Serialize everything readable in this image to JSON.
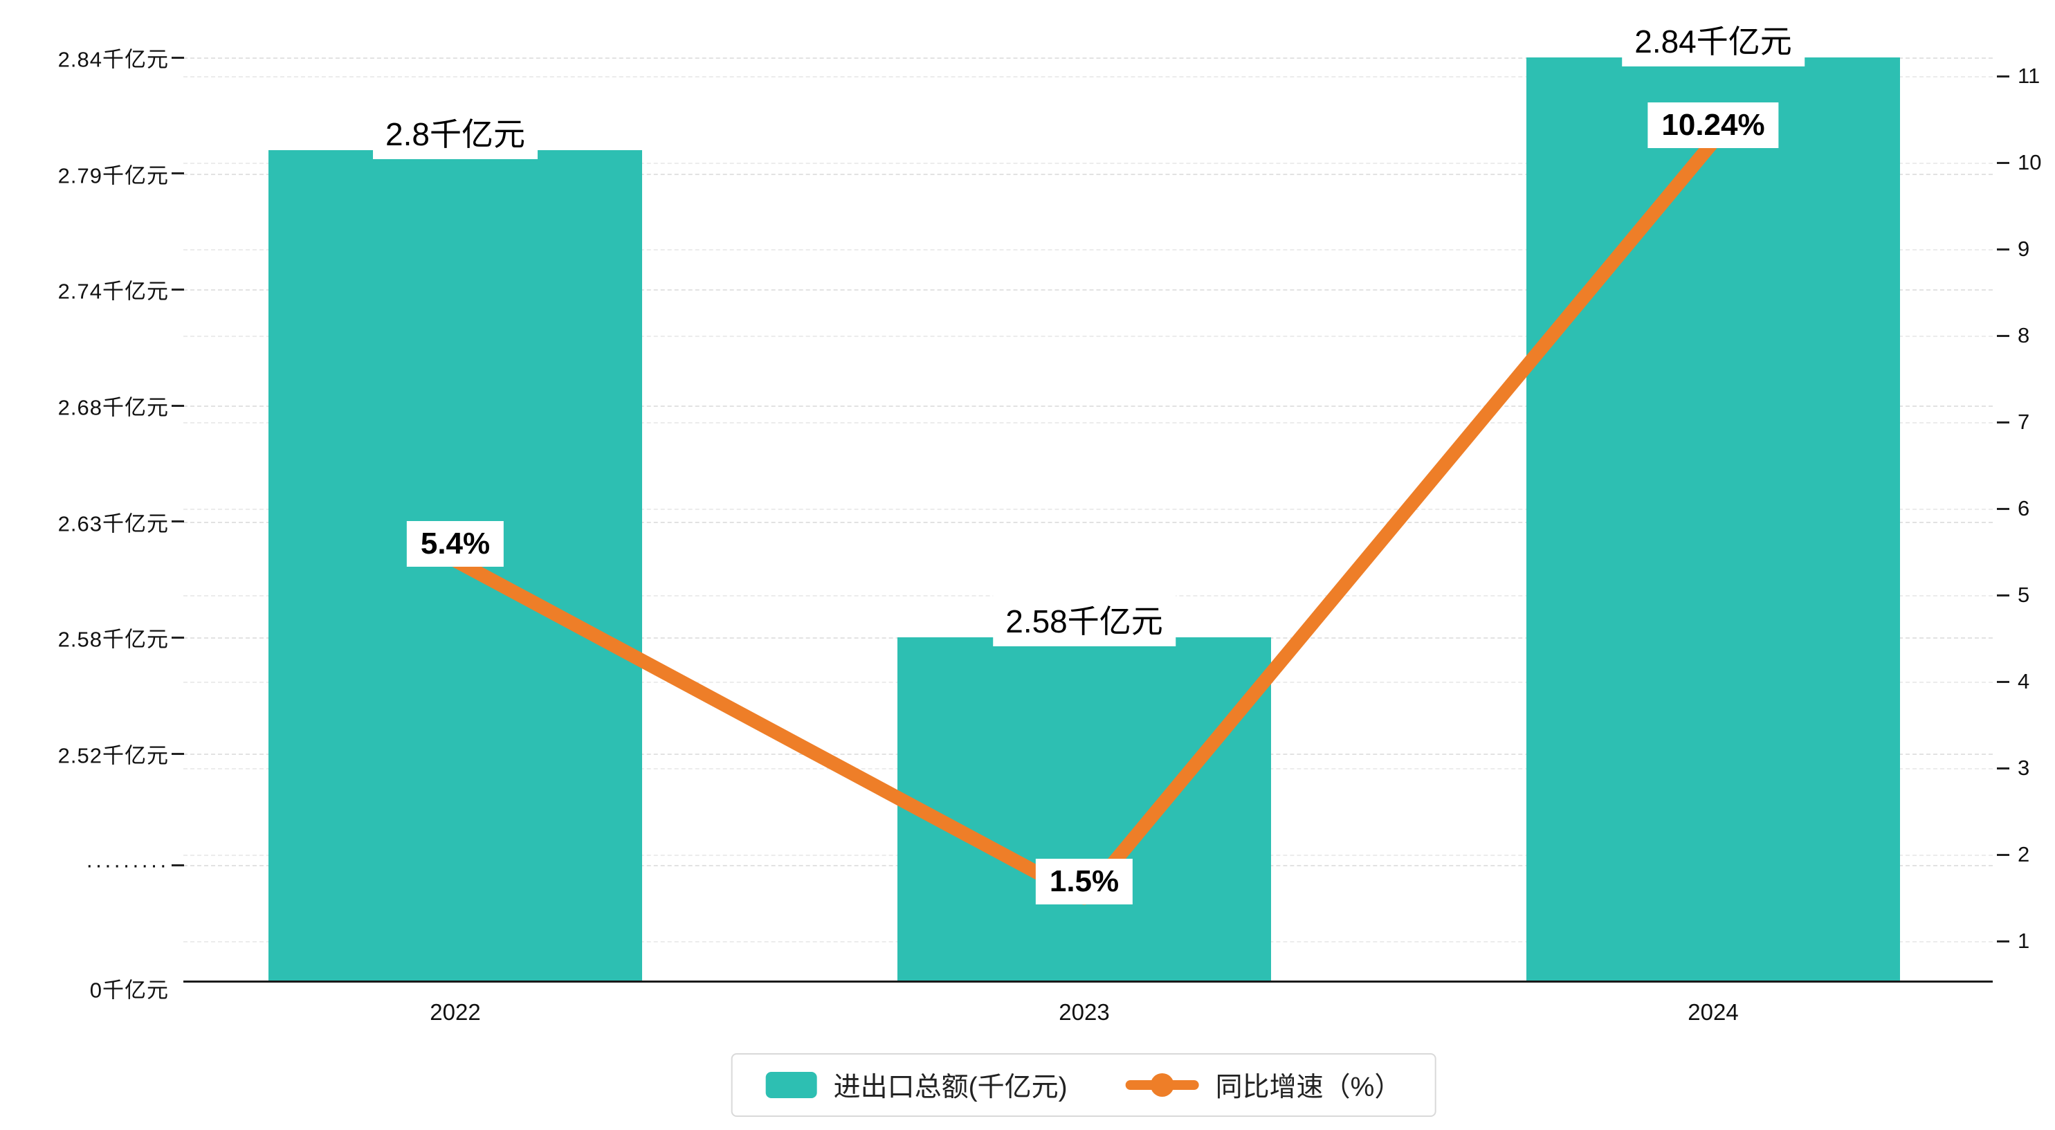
{
  "chart_data": {
    "type": "bar",
    "combo": "bar+line dual axis",
    "categories": [
      "2022",
      "2023",
      "2024"
    ],
    "series": [
      {
        "name": "进出口总额(千亿元)",
        "type": "bar",
        "axis": "left",
        "values": [
          2.8,
          2.58,
          2.84
        ],
        "labels": [
          "2.8千亿元",
          "2.58千亿元",
          "2.84千亿元"
        ],
        "color": "#2dbfb2"
      },
      {
        "name": "同比增速（%）",
        "type": "line",
        "axis": "right",
        "values": [
          5.4,
          1.5,
          10.24
        ],
        "labels": [
          "5.4%",
          "1.5%",
          "10.24%"
        ],
        "color": "#ee7e28"
      }
    ],
    "left_axis": {
      "unit": "千亿元",
      "tick_labels": [
        "2.84千亿元",
        "2.79千亿元",
        "2.74千亿元",
        "2.68千亿元",
        "2.63千亿元",
        "2.58千亿元",
        "2.52千亿元"
      ],
      "break_label": "·········",
      "zero_label": "0千亿元",
      "has_break": true
    },
    "right_axis": {
      "ticks": [
        11,
        10,
        9,
        8,
        7,
        6,
        5,
        4,
        3,
        2,
        1
      ],
      "range": [
        1,
        11
      ]
    },
    "legend": [
      {
        "label": "进出口总额(千亿元)",
        "marker": "rect"
      },
      {
        "label": "同比增速（%）",
        "marker": "line-dot"
      }
    ],
    "grid": true,
    "title": ""
  },
  "colors": {
    "bar": "#2dbfb2",
    "line": "#ee7e28",
    "grid_left": "#e2e2e2",
    "grid_right": "#ececec",
    "axis": "#1a1a1a",
    "text": "#111111"
  }
}
